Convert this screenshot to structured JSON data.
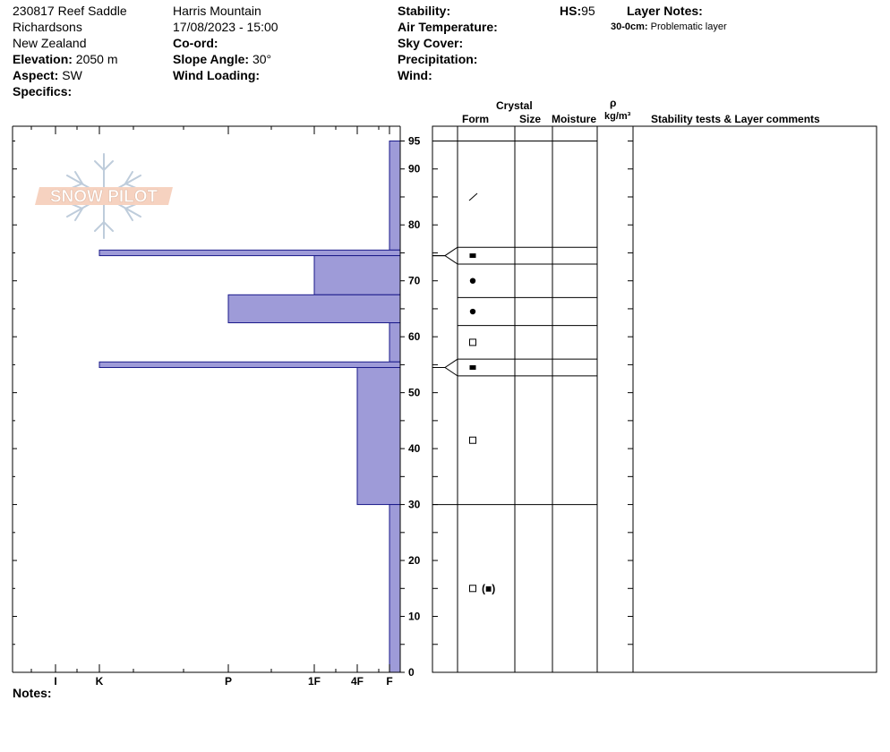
{
  "header": {
    "site": "230817 Reef Saddle",
    "location": "Richardsons",
    "country": "New Zealand",
    "elevation_label": "Elevation:",
    "elevation_value": "2050 m",
    "aspect_label": "Aspect:",
    "aspect_value": "SW",
    "specifics_label": "Specifics:",
    "mountain": "Harris Mountain",
    "datetime": "17/08/2023 - 15:00",
    "coord_label": "Co-ord:",
    "slope_label": "Slope Angle:",
    "slope_value": "30°",
    "wind_loading_label": "Wind Loading:",
    "stability_label": "Stability:",
    "air_temp_label": "Air Temperature:",
    "sky_cover_label": "Sky Cover:",
    "precipitation_label": "Precipitation:",
    "wind_label": "Wind:",
    "hs_label": "HS:",
    "hs_value": "95",
    "layer_notes_label": "Layer Notes:",
    "layer_note_range": "30-0cm:",
    "layer_note_text": "Problematic layer"
  },
  "logo": {
    "text": "SNOW PILOT"
  },
  "notes_label": "Notes:",
  "columns": {
    "crystal": "Crystal",
    "form": "Form",
    "size": "Size",
    "moisture": "Moisture",
    "rho": "ρ",
    "density_unit": "kg/m³",
    "stability": "Stability tests & Layer comments"
  },
  "chart_data": {
    "type": "bar",
    "title": "",
    "x_axis": {
      "label": "",
      "ticks": [
        "I",
        "K",
        "P",
        "1F",
        "4F",
        "F"
      ],
      "direction": "hardness increases to the left"
    },
    "y_axis": {
      "label": "",
      "unit": "cm",
      "range": [
        0,
        95
      ],
      "ticks": [
        0,
        10,
        20,
        30,
        40,
        50,
        60,
        70,
        80,
        90,
        95
      ]
    },
    "hardness_profile": [
      {
        "top": 95,
        "bottom": 75.5,
        "hardness": "F"
      },
      {
        "top": 75.5,
        "bottom": 74.5,
        "hardness": "K"
      },
      {
        "top": 74.5,
        "bottom": 67.5,
        "hardness": "1F"
      },
      {
        "top": 67.5,
        "bottom": 62.5,
        "hardness": "P"
      },
      {
        "top": 62.5,
        "bottom": 55.5,
        "hardness": "F"
      },
      {
        "top": 55.5,
        "bottom": 54.5,
        "hardness": "K"
      },
      {
        "top": 54.5,
        "bottom": 30,
        "hardness": "4F"
      },
      {
        "top": 30,
        "bottom": 0,
        "hardness": "F"
      }
    ],
    "layer_boundaries": [
      95,
      76,
      73,
      67,
      62,
      56,
      53,
      30,
      0
    ],
    "crystal_forms": [
      {
        "depth": 85,
        "form": "decomposing-fragments",
        "symbol": "⁄"
      },
      {
        "depth": 74.5,
        "form": "surface-hoar",
        "symbol": "■"
      },
      {
        "depth": 70,
        "form": "rounded-grains",
        "symbol": "●"
      },
      {
        "depth": 64.5,
        "form": "rounded-grains",
        "symbol": "●"
      },
      {
        "depth": 59,
        "form": "faceted-crystals",
        "symbol": "□"
      },
      {
        "depth": 54.5,
        "form": "surface-hoar",
        "symbol": "■"
      },
      {
        "depth": 41.5,
        "form": "faceted-crystals",
        "symbol": "□"
      },
      {
        "depth": 15,
        "form": "faceted-crystals",
        "symbol": "□",
        "secondary": "(■)"
      }
    ]
  }
}
